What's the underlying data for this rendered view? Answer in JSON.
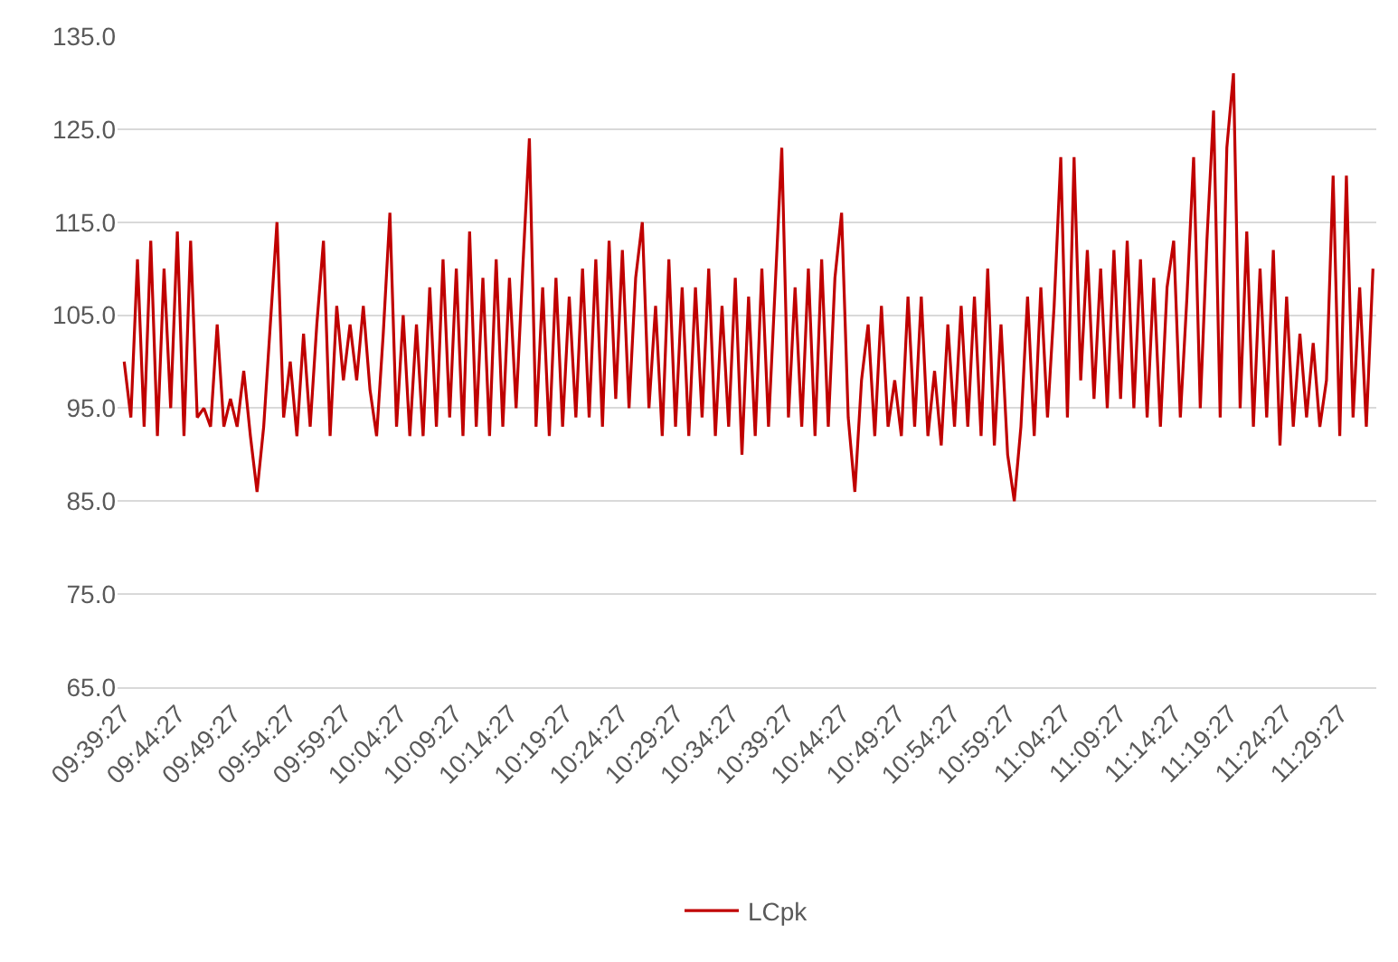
{
  "chart_data": {
    "type": "line",
    "xlim": [
      9.65,
      11.545
    ],
    "ylim": [
      65,
      135
    ],
    "xticks": [
      {
        "value": 9.6575,
        "label": "09:39:27"
      },
      {
        "value": 9.740833,
        "label": "09:44:27"
      },
      {
        "value": 9.824167,
        "label": "09:49:27"
      },
      {
        "value": 9.9075,
        "label": "09:54:27"
      },
      {
        "value": 9.990833,
        "label": "09:59:27"
      },
      {
        "value": 10.074167,
        "label": "10:04:27"
      },
      {
        "value": 10.1575,
        "label": "10:09:27"
      },
      {
        "value": 10.240833,
        "label": "10:14:27"
      },
      {
        "value": 10.324167,
        "label": "10:19:27"
      },
      {
        "value": 10.4075,
        "label": "10:24:27"
      },
      {
        "value": 10.490833,
        "label": "10:29:27"
      },
      {
        "value": 10.574167,
        "label": "10:34:27"
      },
      {
        "value": 10.6575,
        "label": "10:39:27"
      },
      {
        "value": 10.740833,
        "label": "10:44:27"
      },
      {
        "value": 10.824167,
        "label": "10:49:27"
      },
      {
        "value": 10.9075,
        "label": "10:54:27"
      },
      {
        "value": 10.990833,
        "label": "10:59:27"
      },
      {
        "value": 11.074167,
        "label": "11:04:27"
      },
      {
        "value": 11.1575,
        "label": "11:09:27"
      },
      {
        "value": 11.240833,
        "label": "11:14:27"
      },
      {
        "value": 11.324167,
        "label": "11:19:27"
      },
      {
        "value": 11.4075,
        "label": "11:24:27"
      },
      {
        "value": 11.490833,
        "label": "11:29:27"
      }
    ],
    "yticks": [
      {
        "value": 65,
        "label": "65.0"
      },
      {
        "value": 75,
        "label": "75.0"
      },
      {
        "value": 85,
        "label": "85.0"
      },
      {
        "value": 95,
        "label": "95.0"
      },
      {
        "value": 105,
        "label": "105.0"
      },
      {
        "value": 115,
        "label": "115.0"
      },
      {
        "value": 125,
        "label": "125.0"
      },
      {
        "value": 135,
        "label": "135.0"
      }
    ],
    "grid": "y",
    "legend": "bottom",
    "marker": "none",
    "line_style": "solid",
    "x": [
      9.66,
      9.67,
      9.68,
      9.69,
      9.7,
      9.71,
      9.72,
      9.73,
      9.74,
      9.75,
      9.76,
      9.77,
      9.78,
      9.79,
      9.8,
      9.81,
      9.82,
      9.83,
      9.84,
      9.85,
      9.86,
      9.87,
      9.88,
      9.89,
      9.9,
      9.91,
      9.92,
      9.93,
      9.94,
      9.95,
      9.96,
      9.97,
      9.98,
      9.99,
      10.0,
      10.01,
      10.02,
      10.03,
      10.04,
      10.05,
      10.06,
      10.07,
      10.08,
      10.09,
      10.1,
      10.11,
      10.12,
      10.13,
      10.14,
      10.15,
      10.16,
      10.17,
      10.18,
      10.19,
      10.2,
      10.21,
      10.22,
      10.23,
      10.24,
      10.25,
      10.26,
      10.27,
      10.28,
      10.29,
      10.3,
      10.31,
      10.32,
      10.33,
      10.34,
      10.35,
      10.36,
      10.37,
      10.38,
      10.39,
      10.4,
      10.41,
      10.42,
      10.43,
      10.44,
      10.45,
      10.46,
      10.47,
      10.48,
      10.49,
      10.5,
      10.51,
      10.52,
      10.53,
      10.54,
      10.55,
      10.56,
      10.57,
      10.58,
      10.59,
      10.6,
      10.61,
      10.62,
      10.63,
      10.64,
      10.65,
      10.66,
      10.67,
      10.68,
      10.69,
      10.7,
      10.71,
      10.72,
      10.73,
      10.74,
      10.75,
      10.76,
      10.77,
      10.78,
      10.79,
      10.8,
      10.81,
      10.82,
      10.83,
      10.84,
      10.85,
      10.86,
      10.87,
      10.88,
      10.89,
      10.9,
      10.91,
      10.92,
      10.93,
      10.94,
      10.95,
      10.96,
      10.97,
      10.98,
      10.99,
      11.0,
      11.01,
      11.02,
      11.03,
      11.04,
      11.05,
      11.06,
      11.07,
      11.08,
      11.09,
      11.1,
      11.11,
      11.12,
      11.13,
      11.14,
      11.15,
      11.16,
      11.17,
      11.18,
      11.19,
      11.2,
      11.21,
      11.22,
      11.23,
      11.24,
      11.25,
      11.26,
      11.27,
      11.28,
      11.29,
      11.3,
      11.31,
      11.32,
      11.33,
      11.34,
      11.35,
      11.36,
      11.37,
      11.38,
      11.39,
      11.4,
      11.41,
      11.42,
      11.43,
      11.44,
      11.45,
      11.46,
      11.47,
      11.48,
      11.49,
      11.5,
      11.51,
      11.52,
      11.53,
      11.54
    ],
    "series": [
      {
        "name": "LCpk",
        "color": "#c00000",
        "values": [
          100,
          94,
          111,
          93,
          113,
          92,
          110,
          95,
          114,
          92,
          113,
          94,
          95,
          93,
          104,
          93,
          96,
          93,
          99,
          92,
          86,
          93,
          104,
          115,
          94,
          100,
          92,
          103,
          93,
          104,
          113,
          92,
          106,
          98,
          104,
          98,
          106,
          97,
          92,
          103,
          116,
          93,
          105,
          92,
          104,
          92,
          108,
          93,
          111,
          94,
          110,
          92,
          114,
          93,
          109,
          92,
          111,
          93,
          109,
          95,
          110,
          124,
          93,
          108,
          92,
          109,
          93,
          107,
          94,
          110,
          94,
          111,
          93,
          113,
          96,
          112,
          95,
          109,
          115,
          95,
          106,
          92,
          111,
          93,
          108,
          92,
          108,
          94,
          110,
          92,
          106,
          93,
          109,
          90,
          107,
          92,
          110,
          93,
          108,
          123,
          94,
          108,
          93,
          110,
          92,
          111,
          93,
          109,
          116,
          94,
          86,
          98,
          104,
          92,
          106,
          93,
          98,
          92,
          107,
          93,
          107,
          92,
          99,
          91,
          104,
          93,
          106,
          93,
          107,
          92,
          110,
          91,
          104,
          90,
          85,
          93,
          107,
          92,
          108,
          94,
          106,
          122,
          94,
          122,
          98,
          112,
          96,
          110,
          95,
          112,
          96,
          113,
          95,
          111,
          94,
          109,
          93,
          108,
          113,
          94,
          107,
          122,
          95,
          113,
          127,
          94,
          123,
          131,
          95,
          114,
          93,
          110,
          94,
          112,
          91,
          107,
          93,
          103,
          94,
          102,
          93,
          98,
          120,
          92,
          120,
          94,
          108,
          93,
          110
        ]
      }
    ]
  }
}
